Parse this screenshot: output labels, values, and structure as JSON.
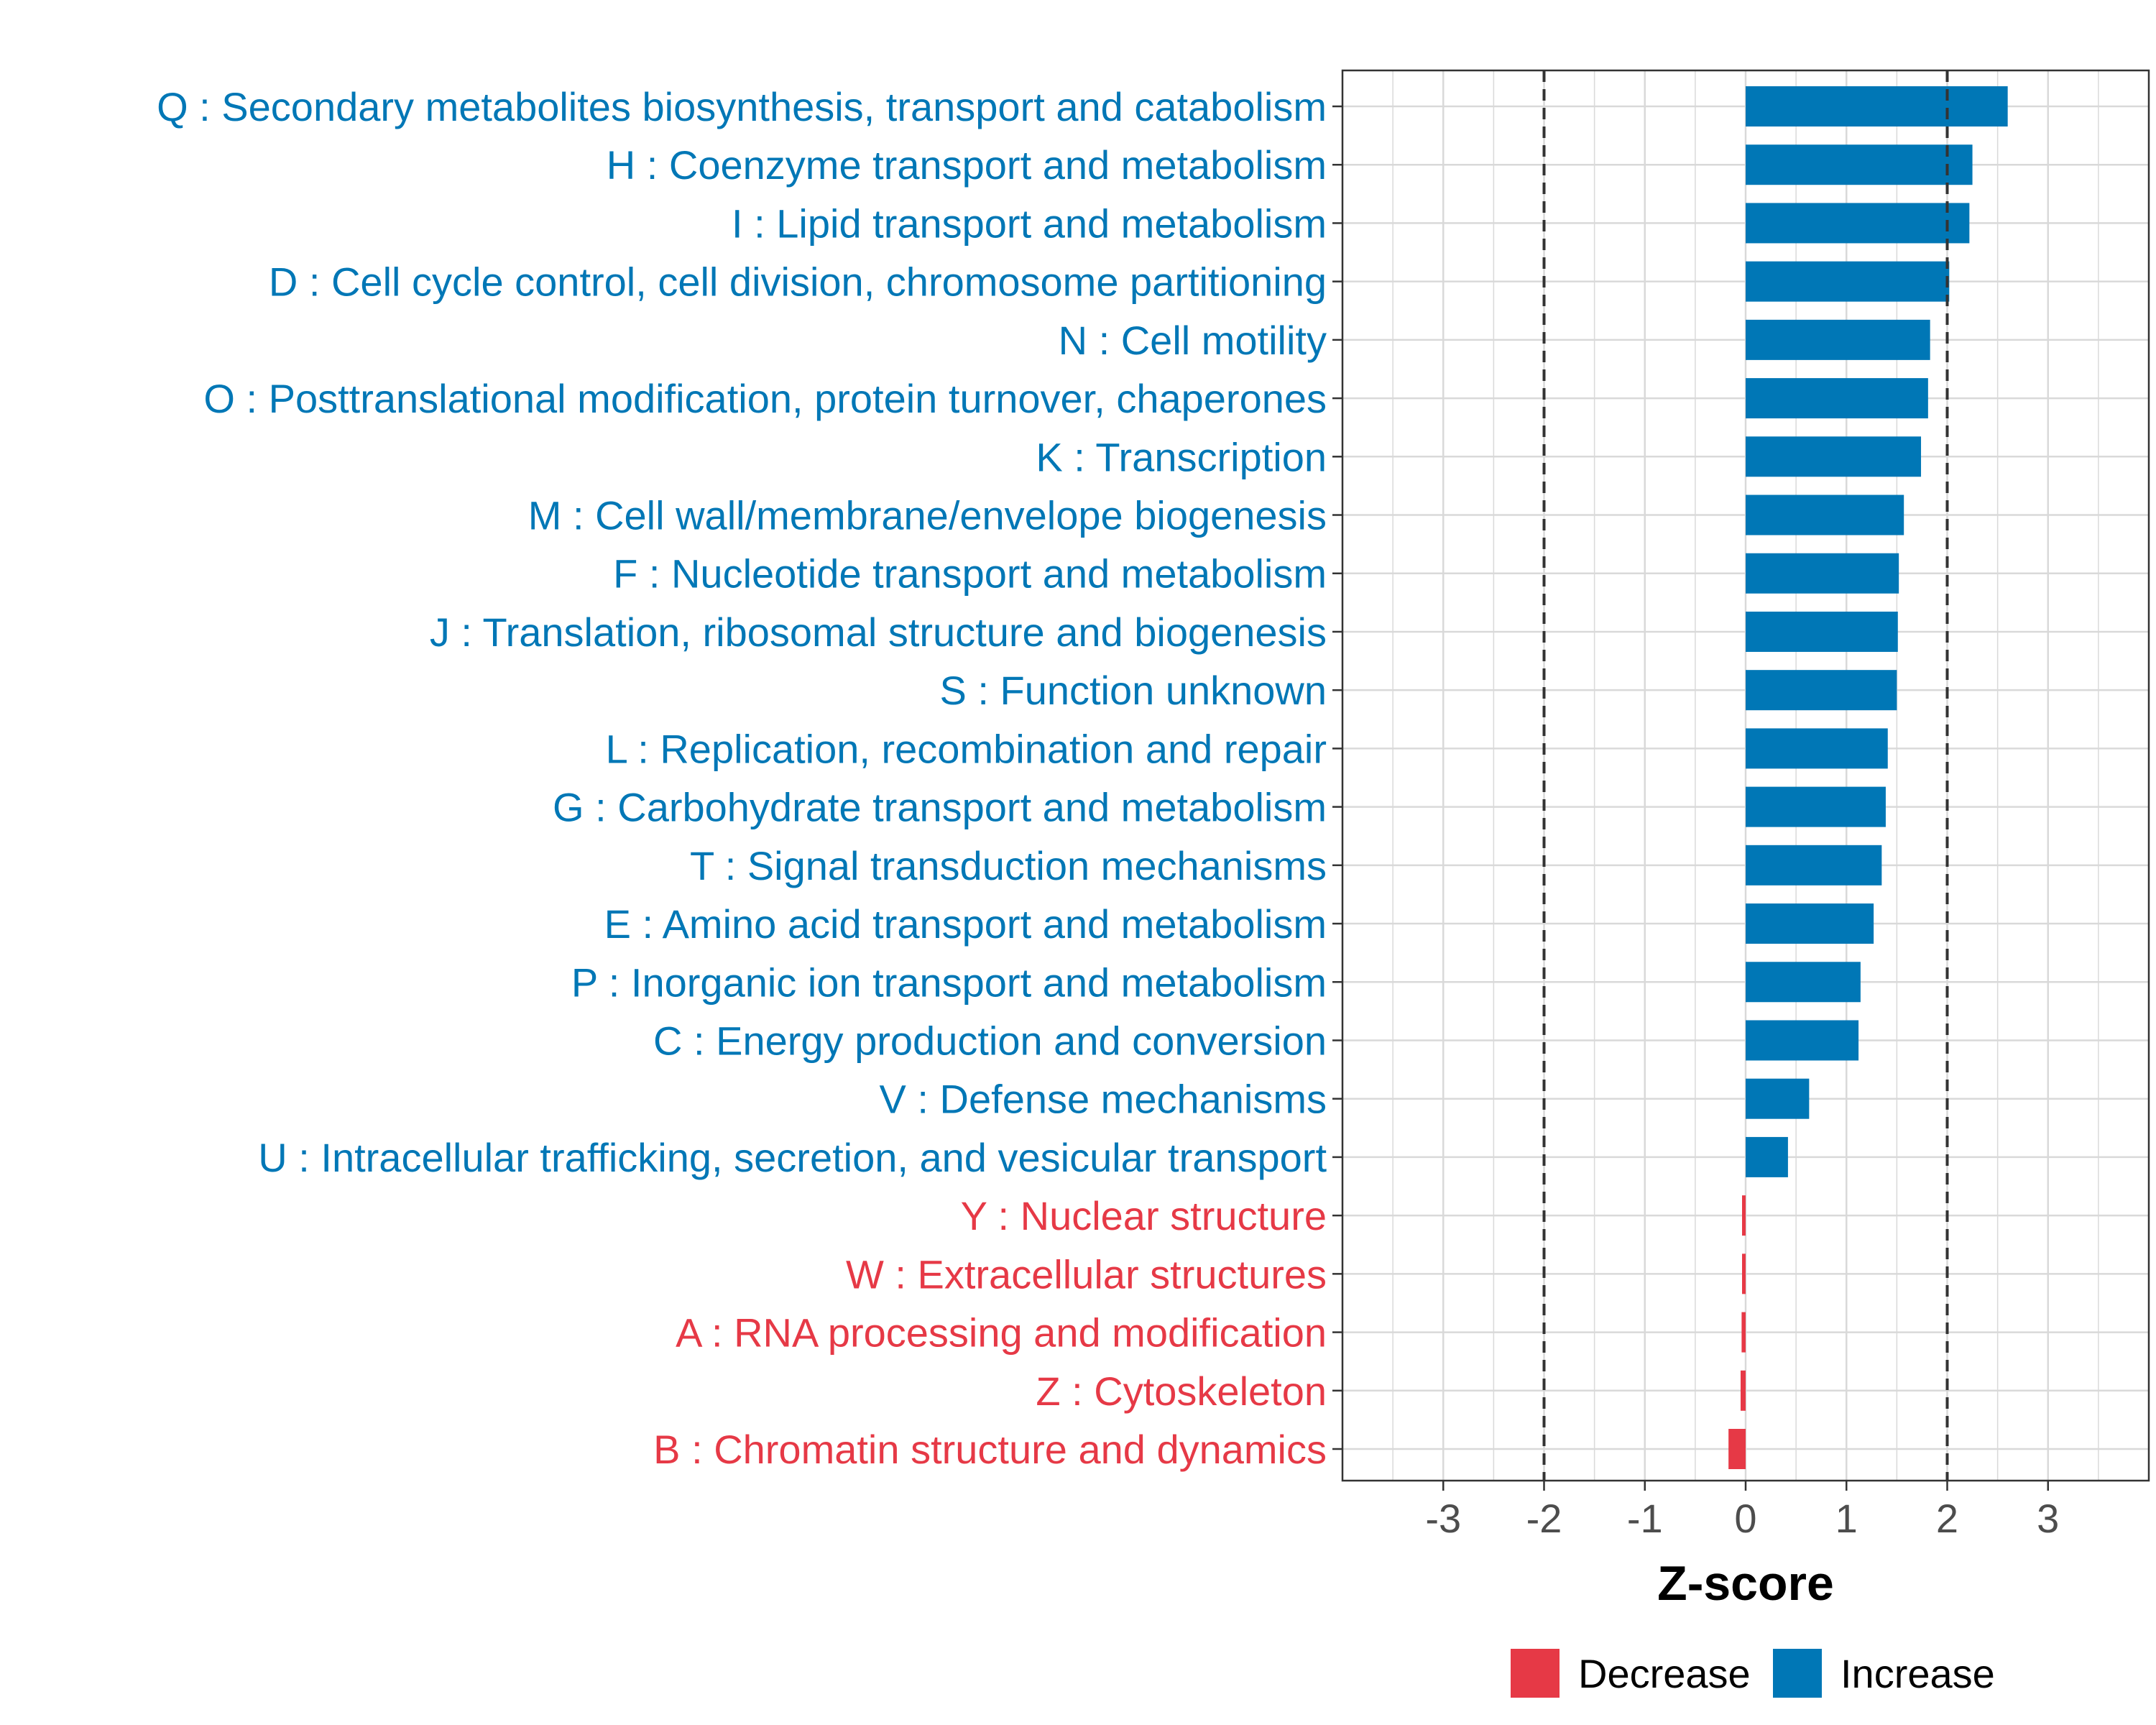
{
  "chart_data": {
    "type": "bar",
    "orientation": "horizontal",
    "title": "",
    "xlabel": "Z-score",
    "ylabel": "",
    "xlim": [
      -4,
      4
    ],
    "xticks": [
      -3,
      -2,
      -1,
      0,
      1,
      2,
      3
    ],
    "xtick_labels": [
      "-3",
      "-2",
      "-1",
      "0",
      "1",
      "2",
      "3"
    ],
    "threshold_lines": [
      -2,
      2
    ],
    "grid": true,
    "categories": [
      "Q : Secondary metabolites biosynthesis, transport and catabolism",
      "H : Coenzyme transport and metabolism",
      "I : Lipid transport and metabolism",
      "D : Cell cycle control, cell division, chromosome partitioning",
      "N : Cell motility",
      "O : Posttranslational modification, protein turnover, chaperones",
      "K : Transcription",
      "M : Cell wall/membrane/envelope biogenesis",
      "F : Nucleotide transport and metabolism",
      "J : Translation, ribosomal structure and biogenesis",
      "S : Function unknown",
      "L : Replication, recombination and repair",
      "G : Carbohydrate transport and metabolism",
      "T : Signal transduction mechanisms",
      "E : Amino acid transport and metabolism",
      "P : Inorganic ion transport and metabolism",
      "C : Energy production and conversion",
      "V : Defense mechanisms",
      "U : Intracellular trafficking, secretion, and vesicular transport",
      "Y : Nuclear structure",
      "W : Extracellular structures",
      "A : RNA processing and modification",
      "Z : Cytoskeleton",
      "B : Chromatin structure and dynamics"
    ],
    "values": [
      2.6,
      2.25,
      2.22,
      2.02,
      1.83,
      1.81,
      1.74,
      1.57,
      1.52,
      1.51,
      1.5,
      1.41,
      1.39,
      1.35,
      1.27,
      1.14,
      1.12,
      0.63,
      0.42,
      -0.02,
      -0.03,
      -0.04,
      -0.05,
      -0.17
    ],
    "legend": {
      "position": "bottom",
      "entries": [
        {
          "label": "Decrease",
          "color": "#E63946"
        },
        {
          "label": "Increase",
          "color": "#0077B6"
        }
      ]
    },
    "colors": {
      "increase": "#0077B6",
      "decrease": "#E63946",
      "grid": "#d9d9d9",
      "threshold": "#333333",
      "axis_text": "#4d4d4d"
    }
  }
}
